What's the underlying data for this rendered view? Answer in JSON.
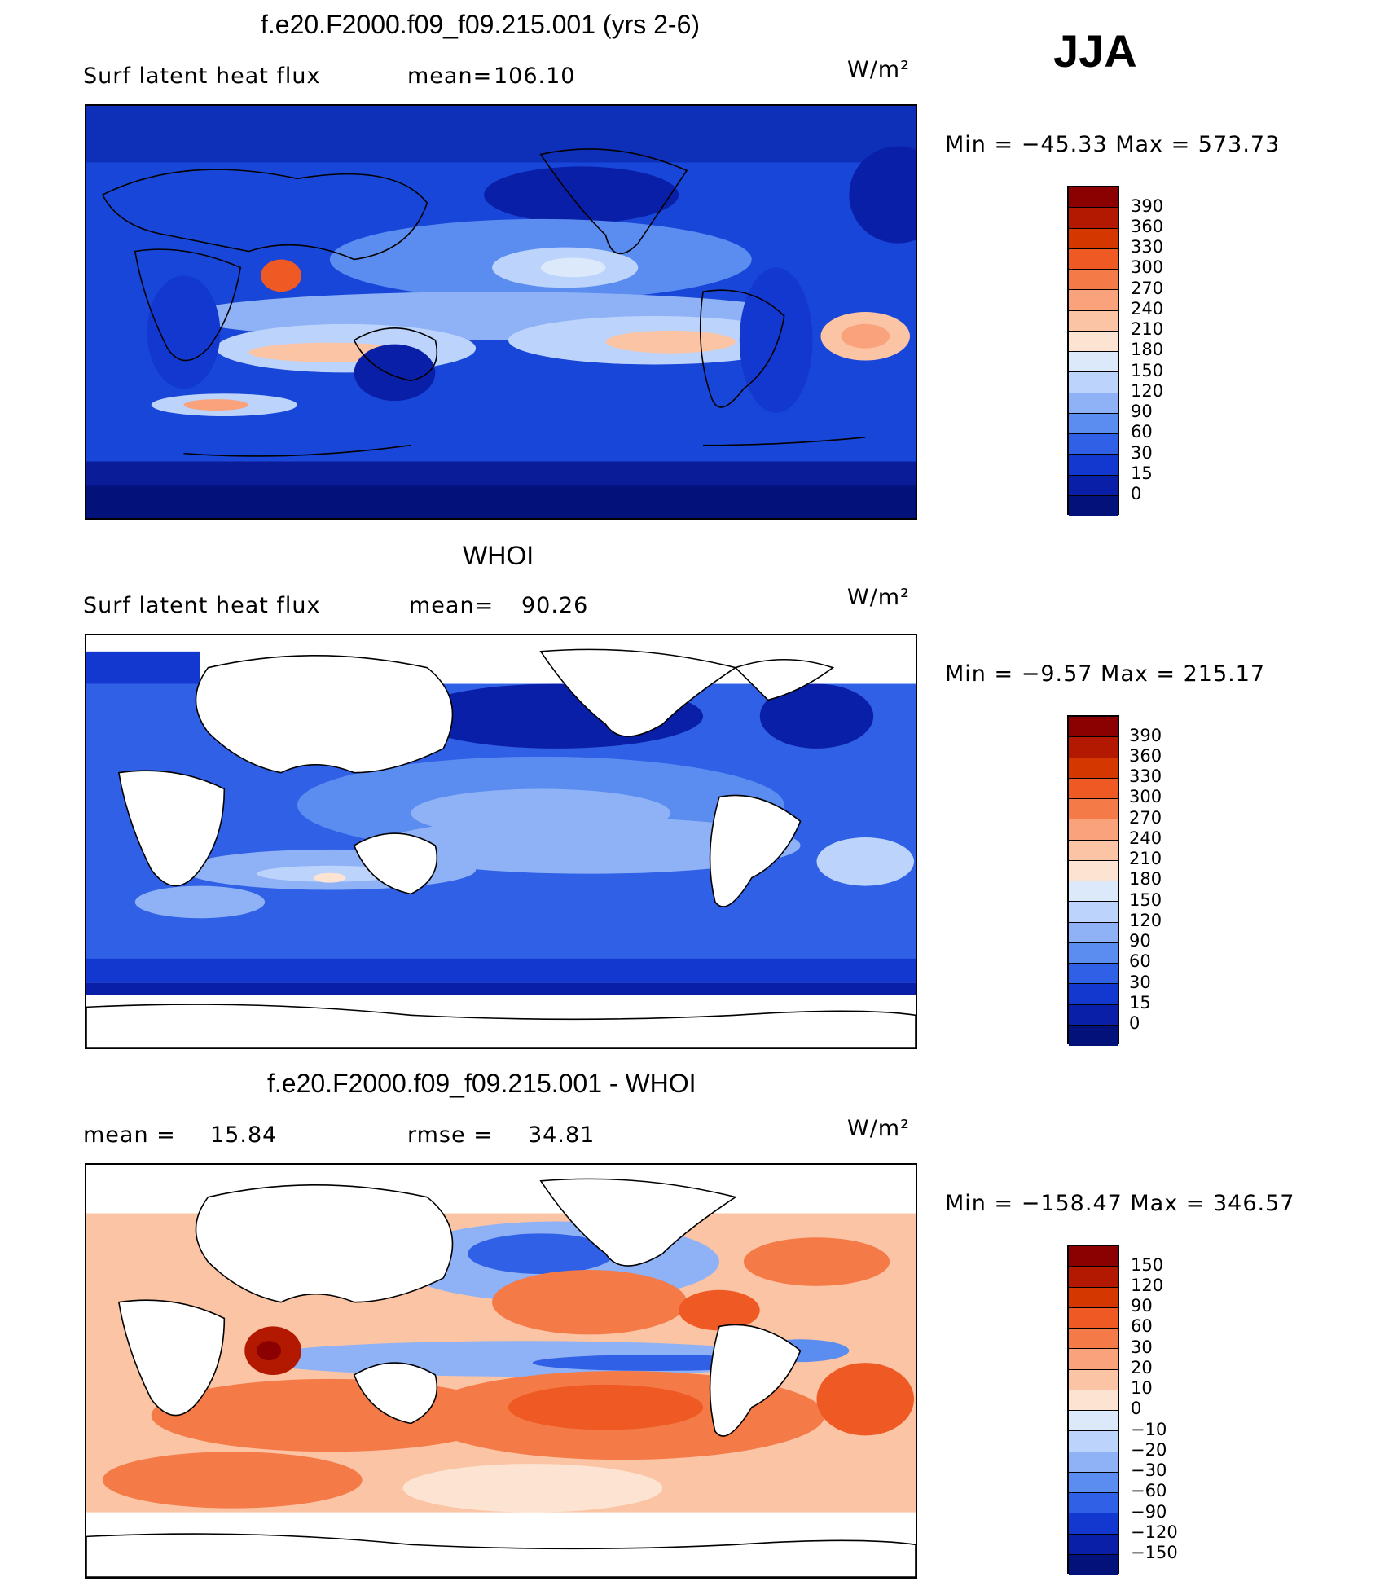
{
  "season": "JJA",
  "chart_data": [
    {
      "type": "heatmap",
      "title": "f.e20.F2000.f09_f09.215.001 (yrs 2-6)",
      "variable": "Surf  latent heat flux",
      "stat_label": "mean=",
      "stat_value": "106.10",
      "units": "W/m²",
      "range_text": "Min  =  −45.33  Max  =  573.73",
      "min": -45.33,
      "max": 573.73,
      "colorbar_levels": [
        "390",
        "360",
        "330",
        "300",
        "270",
        "240",
        "210",
        "180",
        "150",
        "120",
        "90",
        "60",
        "30",
        "15",
        "0"
      ],
      "colorbar_colors": [
        "#8b0000",
        "#b31800",
        "#d43800",
        "#ef5a24",
        "#f47b48",
        "#f9a27c",
        "#fbc4a4",
        "#fde4d2",
        "#dce9fb",
        "#bcd3fb",
        "#8eb2f5",
        "#5b8cf0",
        "#2f60e6",
        "#1238d0",
        "#0a1fa8",
        "#03117a"
      ]
    },
    {
      "type": "heatmap",
      "title": "WHOI",
      "variable": "Surf  latent heat flux",
      "stat_label": "mean=",
      "stat_value": "90.26",
      "units": "W/m²",
      "range_text": "Min  =   −9.57  Max  =  215.17",
      "min": -9.57,
      "max": 215.17,
      "colorbar_levels": [
        "390",
        "360",
        "330",
        "300",
        "270",
        "240",
        "210",
        "180",
        "150",
        "120",
        "90",
        "60",
        "30",
        "15",
        "0"
      ],
      "colorbar_colors": [
        "#8b0000",
        "#b31800",
        "#d43800",
        "#ef5a24",
        "#f47b48",
        "#f9a27c",
        "#fbc4a4",
        "#fde4d2",
        "#dce9fb",
        "#bcd3fb",
        "#8eb2f5",
        "#5b8cf0",
        "#2f60e6",
        "#1238d0",
        "#0a1fa8",
        "#03117a"
      ]
    },
    {
      "type": "heatmap",
      "title": "f.e20.F2000.f09_f09.215.001 - WHOI",
      "mean_label": "mean  =",
      "mean_value": "15.84",
      "rmse_label": "rmse  =",
      "rmse_value": "34.81",
      "units": "W/m²",
      "range_text": "Min  =  −158.47  Max  =  346.57",
      "min": -158.47,
      "max": 346.57,
      "colorbar_levels": [
        "150",
        "120",
        "90",
        "60",
        "30",
        "20",
        "10",
        "0",
        "−10",
        "−20",
        "−30",
        "−60",
        "−90",
        "−120",
        "−150"
      ],
      "colorbar_colors": [
        "#8b0000",
        "#b31800",
        "#d43800",
        "#ef5a24",
        "#f47b48",
        "#f9a27c",
        "#fbc4a4",
        "#fde4d2",
        "#dce9fb",
        "#bcd3fb",
        "#8eb2f5",
        "#5b8cf0",
        "#2f60e6",
        "#1238d0",
        "#0a1fa8",
        "#03117a"
      ]
    }
  ]
}
